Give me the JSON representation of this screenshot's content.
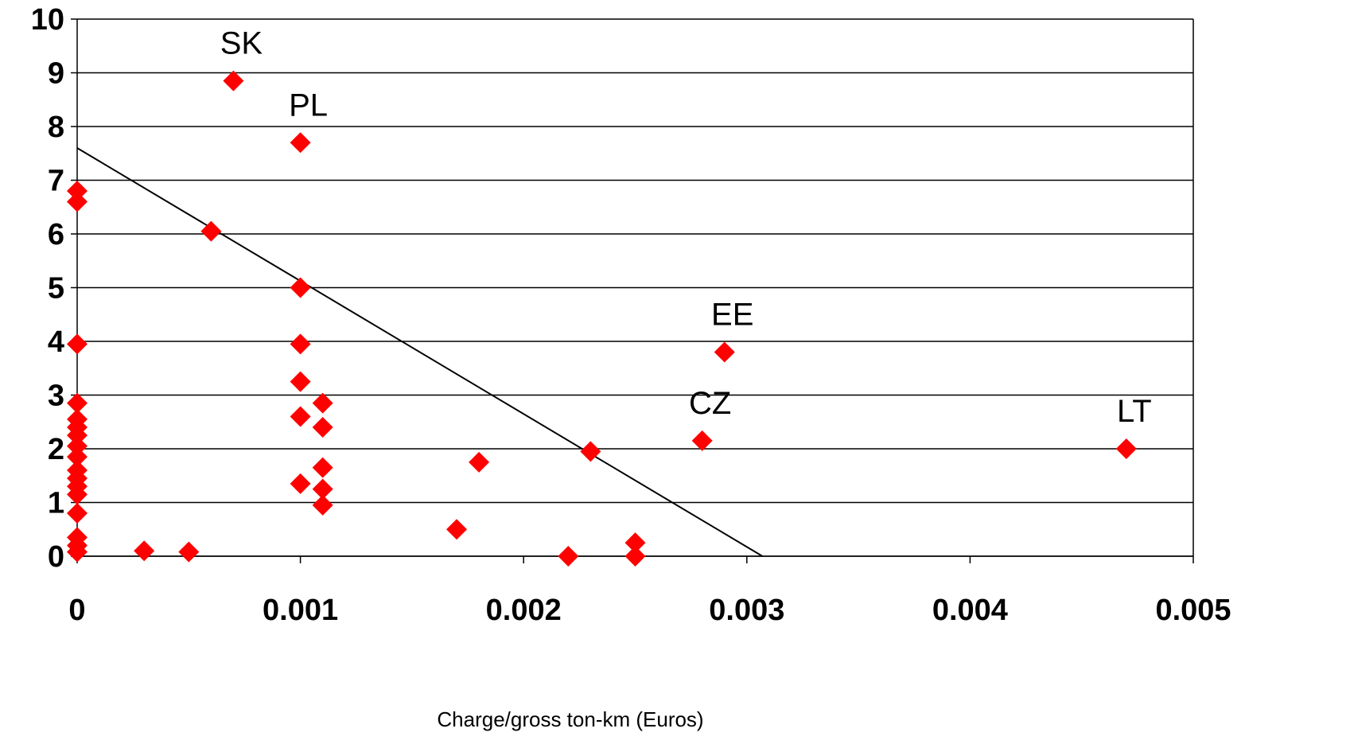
{
  "chart_data": {
    "type": "scatter",
    "title": "",
    "xlabel": "Charge/gross ton-km (Euros)",
    "ylabel": "",
    "xlim": [
      0,
      0.005
    ],
    "ylim": [
      0,
      10
    ],
    "x_ticks": [
      "0",
      "0.001",
      "0.002",
      "0.003",
      "0.004",
      "0.005"
    ],
    "y_ticks": [
      "0",
      "1",
      "2",
      "3",
      "4",
      "5",
      "6",
      "7",
      "8",
      "9",
      "10"
    ],
    "grid": "horizontal",
    "legend": "none",
    "marker": "diamond",
    "marker_color": "#ff0000",
    "series": [
      {
        "points": [
          {
            "x": 0.0007,
            "y": 8.85,
            "label": "SK"
          },
          {
            "x": 0.001,
            "y": 7.7,
            "label": "PL"
          },
          {
            "x": 0.0029,
            "y": 3.8,
            "label": "EE"
          },
          {
            "x": 0.0028,
            "y": 2.15,
            "label": "CZ"
          },
          {
            "x": 0.0047,
            "y": 2.0,
            "label": "LT"
          },
          {
            "x": 0.0,
            "y": 6.8
          },
          {
            "x": 0.0,
            "y": 6.6
          },
          {
            "x": 0.0,
            "y": 3.95
          },
          {
            "x": 0.0,
            "y": 2.85
          },
          {
            "x": 0.0,
            "y": 2.55
          },
          {
            "x": 0.0,
            "y": 2.4
          },
          {
            "x": 0.0,
            "y": 2.25
          },
          {
            "x": 0.0,
            "y": 2.05
          },
          {
            "x": 0.0,
            "y": 1.85
          },
          {
            "x": 0.0,
            "y": 1.6
          },
          {
            "x": 0.0,
            "y": 1.45
          },
          {
            "x": 0.0,
            "y": 1.3
          },
          {
            "x": 0.0,
            "y": 1.15
          },
          {
            "x": 0.0,
            "y": 0.8
          },
          {
            "x": 0.0,
            "y": 0.35
          },
          {
            "x": 0.0,
            "y": 0.2
          },
          {
            "x": 0.0,
            "y": 0.08
          },
          {
            "x": 0.0003,
            "y": 0.1
          },
          {
            "x": 0.0005,
            "y": 0.08
          },
          {
            "x": 0.0006,
            "y": 6.05
          },
          {
            "x": 0.001,
            "y": 5.0
          },
          {
            "x": 0.001,
            "y": 3.95
          },
          {
            "x": 0.001,
            "y": 3.25
          },
          {
            "x": 0.001,
            "y": 2.6
          },
          {
            "x": 0.001,
            "y": 1.35
          },
          {
            "x": 0.0011,
            "y": 2.85
          },
          {
            "x": 0.0011,
            "y": 2.4
          },
          {
            "x": 0.0011,
            "y": 1.65
          },
          {
            "x": 0.0011,
            "y": 1.25
          },
          {
            "x": 0.0011,
            "y": 0.95
          },
          {
            "x": 0.0017,
            "y": 0.5
          },
          {
            "x": 0.0018,
            "y": 1.75
          },
          {
            "x": 0.0022,
            "y": 0.0
          },
          {
            "x": 0.0023,
            "y": 1.95
          },
          {
            "x": 0.0025,
            "y": 0.25
          },
          {
            "x": 0.0025,
            "y": 0.0
          }
        ]
      }
    ],
    "trendline": {
      "type": "linear",
      "from": [
        0.0,
        7.6
      ],
      "to": [
        0.00307,
        0.0
      ],
      "color": "#000000"
    }
  }
}
